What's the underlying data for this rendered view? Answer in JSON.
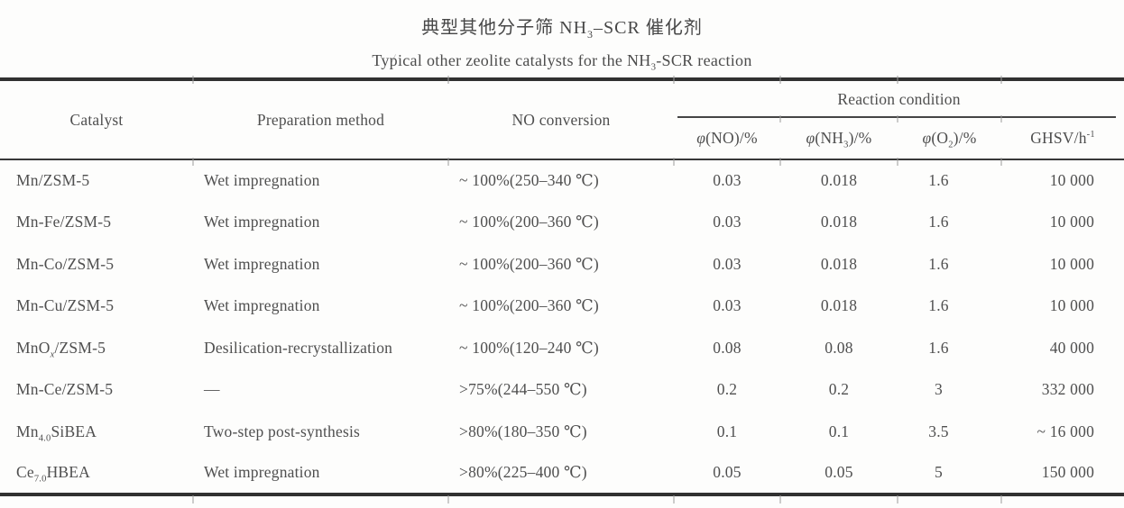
{
  "page": {
    "title_zh": "典型其他分子筛 NH<sub>3</sub>–SCR 催化剂",
    "title_en": "Typical other zeolite catalysts for the NH<sub>3</sub>-SCR reaction",
    "artifact": "/"
  },
  "table": {
    "headers": {
      "catalyst": "Catalyst",
      "preparation": "Preparation method",
      "no_conversion": "NO conversion",
      "reaction_condition": "Reaction condition",
      "phi_no": "<i>φ</i>(NO)/%",
      "phi_nh3": "<i>φ</i>(NH<sub>3</sub>)/%",
      "phi_o2": "<i>φ</i>(O<sub>2</sub>)/%",
      "ghsv": "GHSV/h<sup>-1</sup>"
    },
    "rows": [
      {
        "catalyst": "Mn/ZSM-5",
        "preparation": "Wet impregnation",
        "no_conversion": "~ 100%(250–340 ℃)",
        "phi_no": "0.03",
        "phi_nh3": "0.018",
        "phi_o2": "1.6",
        "ghsv": "10 000"
      },
      {
        "catalyst": "Mn-Fe/ZSM-5",
        "preparation": "Wet impregnation",
        "no_conversion": "~ 100%(200–360 ℃)",
        "phi_no": "0.03",
        "phi_nh3": "0.018",
        "phi_o2": "1.6",
        "ghsv": "10 000"
      },
      {
        "catalyst": "Mn-Co/ZSM-5",
        "preparation": "Wet impregnation",
        "no_conversion": "~ 100%(200–360 ℃)",
        "phi_no": "0.03",
        "phi_nh3": "0.018",
        "phi_o2": "1.6",
        "ghsv": "10 000"
      },
      {
        "catalyst": "Mn-Cu/ZSM-5",
        "preparation": "Wet impregnation",
        "no_conversion": "~ 100%(200–360 ℃)",
        "phi_no": "0.03",
        "phi_nh3": "0.018",
        "phi_o2": "1.6",
        "ghsv": "10 000"
      },
      {
        "catalyst": "MnO<sub><i>x</i></sub>/ZSM-5",
        "preparation": "Desilication-recrystallization",
        "no_conversion": "~ 100%(120–240 ℃)",
        "phi_no": "0.08",
        "phi_nh3": "0.08",
        "phi_o2": "1.6",
        "ghsv": "40 000"
      },
      {
        "catalyst": "Mn-Ce/ZSM-5",
        "preparation": "—",
        "no_conversion": ">75%(244–550 ℃)",
        "phi_no": "0.2",
        "phi_nh3": "0.2",
        "phi_o2": "3",
        "ghsv": "332 000"
      },
      {
        "catalyst": "Mn<sub>4.0</sub>SiBEA",
        "preparation": "Two-step post-synthesis",
        "no_conversion": ">80%(180–350 ℃)",
        "phi_no": "0.1",
        "phi_nh3": "0.1",
        "phi_o2": "3.5",
        "ghsv": "~ 16 000"
      },
      {
        "catalyst": "Ce<sub>7.0</sub>HBEA",
        "preparation": "Wet impregnation",
        "no_conversion": ">80%(225–400 ℃)",
        "phi_no": "0.05",
        "phi_nh3": "0.05",
        "phi_o2": "5",
        "ghsv": "150 000"
      }
    ]
  },
  "colors": {
    "text": "#4a4a4a",
    "rule": "#313131",
    "background": "#fdfdfc"
  }
}
